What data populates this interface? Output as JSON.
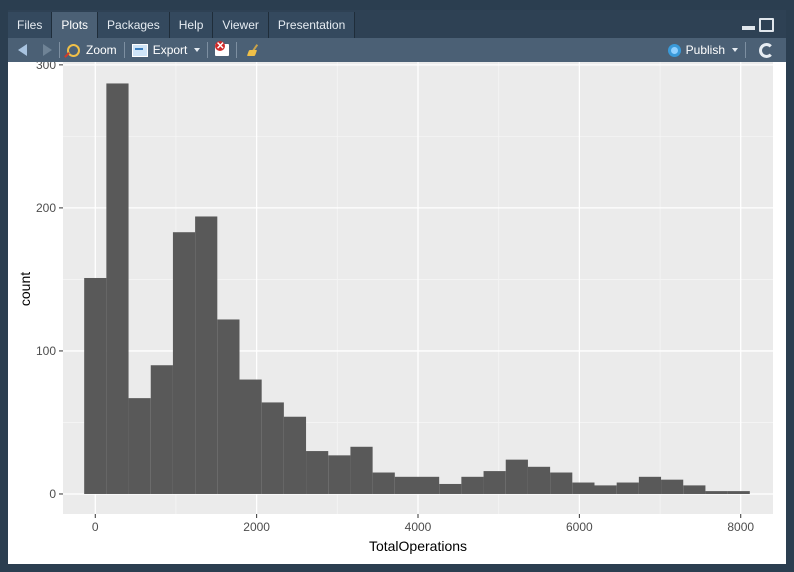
{
  "tabs": [
    {
      "label": "Files",
      "active": false
    },
    {
      "label": "Plots",
      "active": true
    },
    {
      "label": "Packages",
      "active": false
    },
    {
      "label": "Help",
      "active": false
    },
    {
      "label": "Viewer",
      "active": false
    },
    {
      "label": "Presentation",
      "active": false
    }
  ],
  "toolbar": {
    "zoom_label": "Zoom",
    "export_label": "Export",
    "publish_label": "Publish"
  },
  "icons": [
    "back-arrow-icon",
    "forward-arrow-icon",
    "zoom-icon",
    "export-icon",
    "remove-plot-icon",
    "broom-icon",
    "publish-icon",
    "refresh-icon",
    "minimize-icon",
    "maximize-icon"
  ],
  "colors": {
    "panel_bg": "#2b3e50",
    "toolbar_bg": "#4b6075",
    "plot_bg": "#ebebeb",
    "bar_fill": "#595959",
    "grid": "#ffffff"
  },
  "chart_data": {
    "type": "bar",
    "xlabel": "TotalOperations",
    "ylabel": "count",
    "xlim": [
      -400,
      8400
    ],
    "ylim": [
      -14,
      302
    ],
    "x_ticks": [
      0,
      2000,
      4000,
      6000,
      8000
    ],
    "x_tick_labels": [
      "0",
      "2000",
      "4000",
      "6000",
      "8000"
    ],
    "y_ticks": [
      0,
      100,
      200,
      300
    ],
    "y_tick_labels": [
      "0",
      "100",
      "200",
      "300"
    ],
    "grid": true,
    "bin_width": 275,
    "bin_centers": [
      0,
      275,
      550,
      825,
      1100,
      1375,
      1650,
      1925,
      2200,
      2475,
      2750,
      3025,
      3300,
      3575,
      3850,
      4125,
      4400,
      4675,
      4950,
      5225,
      5500,
      5775,
      6050,
      6325,
      6600,
      6875,
      7150,
      7425,
      7700,
      7975
    ],
    "values": [
      151,
      287,
      67,
      90,
      183,
      194,
      122,
      80,
      64,
      54,
      30,
      27,
      33,
      15,
      12,
      12,
      7,
      12,
      16,
      24,
      19,
      15,
      8,
      6,
      8,
      12,
      10,
      6,
      2,
      2
    ]
  }
}
